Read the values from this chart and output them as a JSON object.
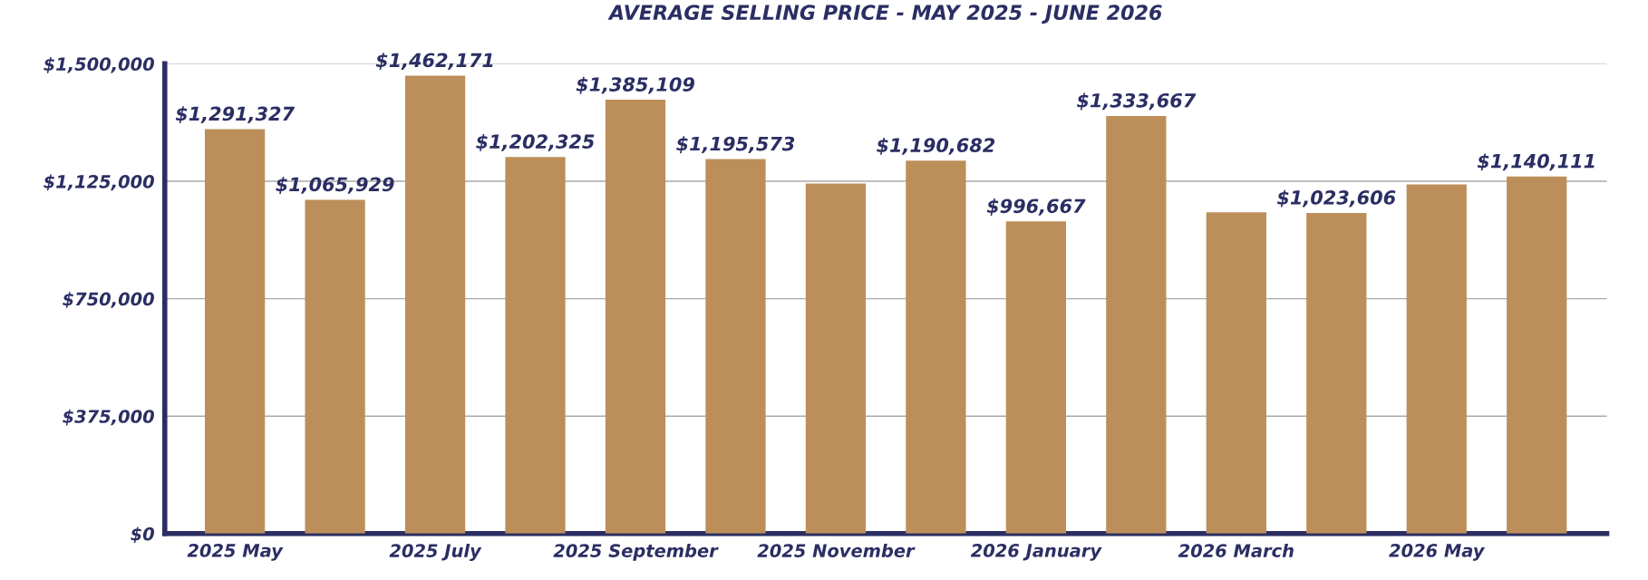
{
  "chart_data": {
    "type": "bar",
    "title": "AVERAGE SELLING PRICE - MAY 2025 - JUNE 2026",
    "categories": [
      "2025 May",
      null,
      "2025 July",
      null,
      "2025 September",
      null,
      "2025 November",
      null,
      "2026 January",
      null,
      "2026 March",
      null,
      "2026 May",
      null
    ],
    "values": [
      1291327,
      1065929,
      1462171,
      1202325,
      1385109,
      1195573,
      1118000,
      1190682,
      996667,
      1333667,
      1026000,
      1023606,
      1115000,
      1140111
    ],
    "value_labels": [
      "$1,291,327",
      "$1,065,929",
      "$1,462,171",
      "$1,202,325",
      "$1,385,109",
      "$1,195,573",
      null,
      "$1,190,682",
      "$996,667",
      "$1,333,667",
      null,
      "$1,023,606",
      null,
      "$1,140,111"
    ],
    "color": "#bc8f5a",
    "ylim": [
      0,
      1500000
    ],
    "yticks": [
      {
        "value": 0,
        "label": "$0"
      },
      {
        "value": 375000,
        "label": "$375,000"
      },
      {
        "value": 750000,
        "label": "$750,000"
      },
      {
        "value": 1125000,
        "label": "$1,125,000"
      },
      {
        "value": 1500000,
        "label": "$1,500,000"
      }
    ],
    "grid": "y",
    "legend": false
  }
}
